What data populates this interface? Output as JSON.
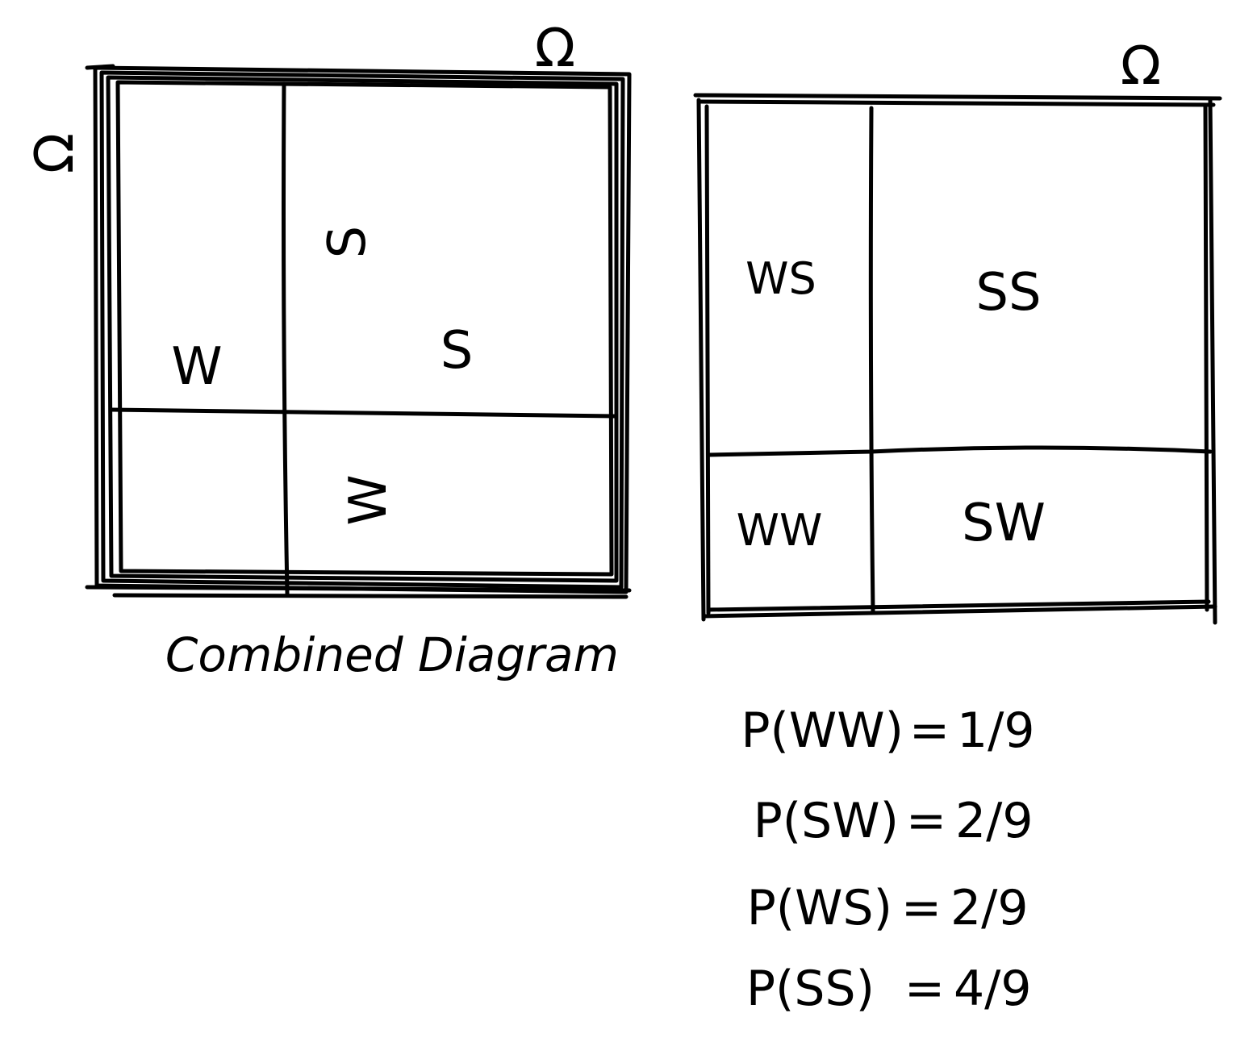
{
  "left_diagram": {
    "corner_label_left": "Ω",
    "corner_label_top": "Ω",
    "region_labels": {
      "w": "W",
      "rotated_s_top": "S",
      "s": "S",
      "rotated_w_bottom": "W"
    },
    "caption": "Combined Diagram"
  },
  "right_diagram": {
    "corner_label_top": "Ω",
    "cells": {
      "ws": "WS",
      "ss": "SS",
      "ww": "WW",
      "sw": "SW"
    }
  },
  "equations": [
    {
      "lhs": "P(WW)",
      "eq": "=",
      "rhs": "1/9"
    },
    {
      "lhs": "P(SW)",
      "eq": "=",
      "rhs": "2/9"
    },
    {
      "lhs": "P(WS)",
      "eq": "=",
      "rhs": "2/9"
    },
    {
      "lhs": "P(SS)",
      "eq": "=",
      "rhs": "4/9"
    }
  ]
}
